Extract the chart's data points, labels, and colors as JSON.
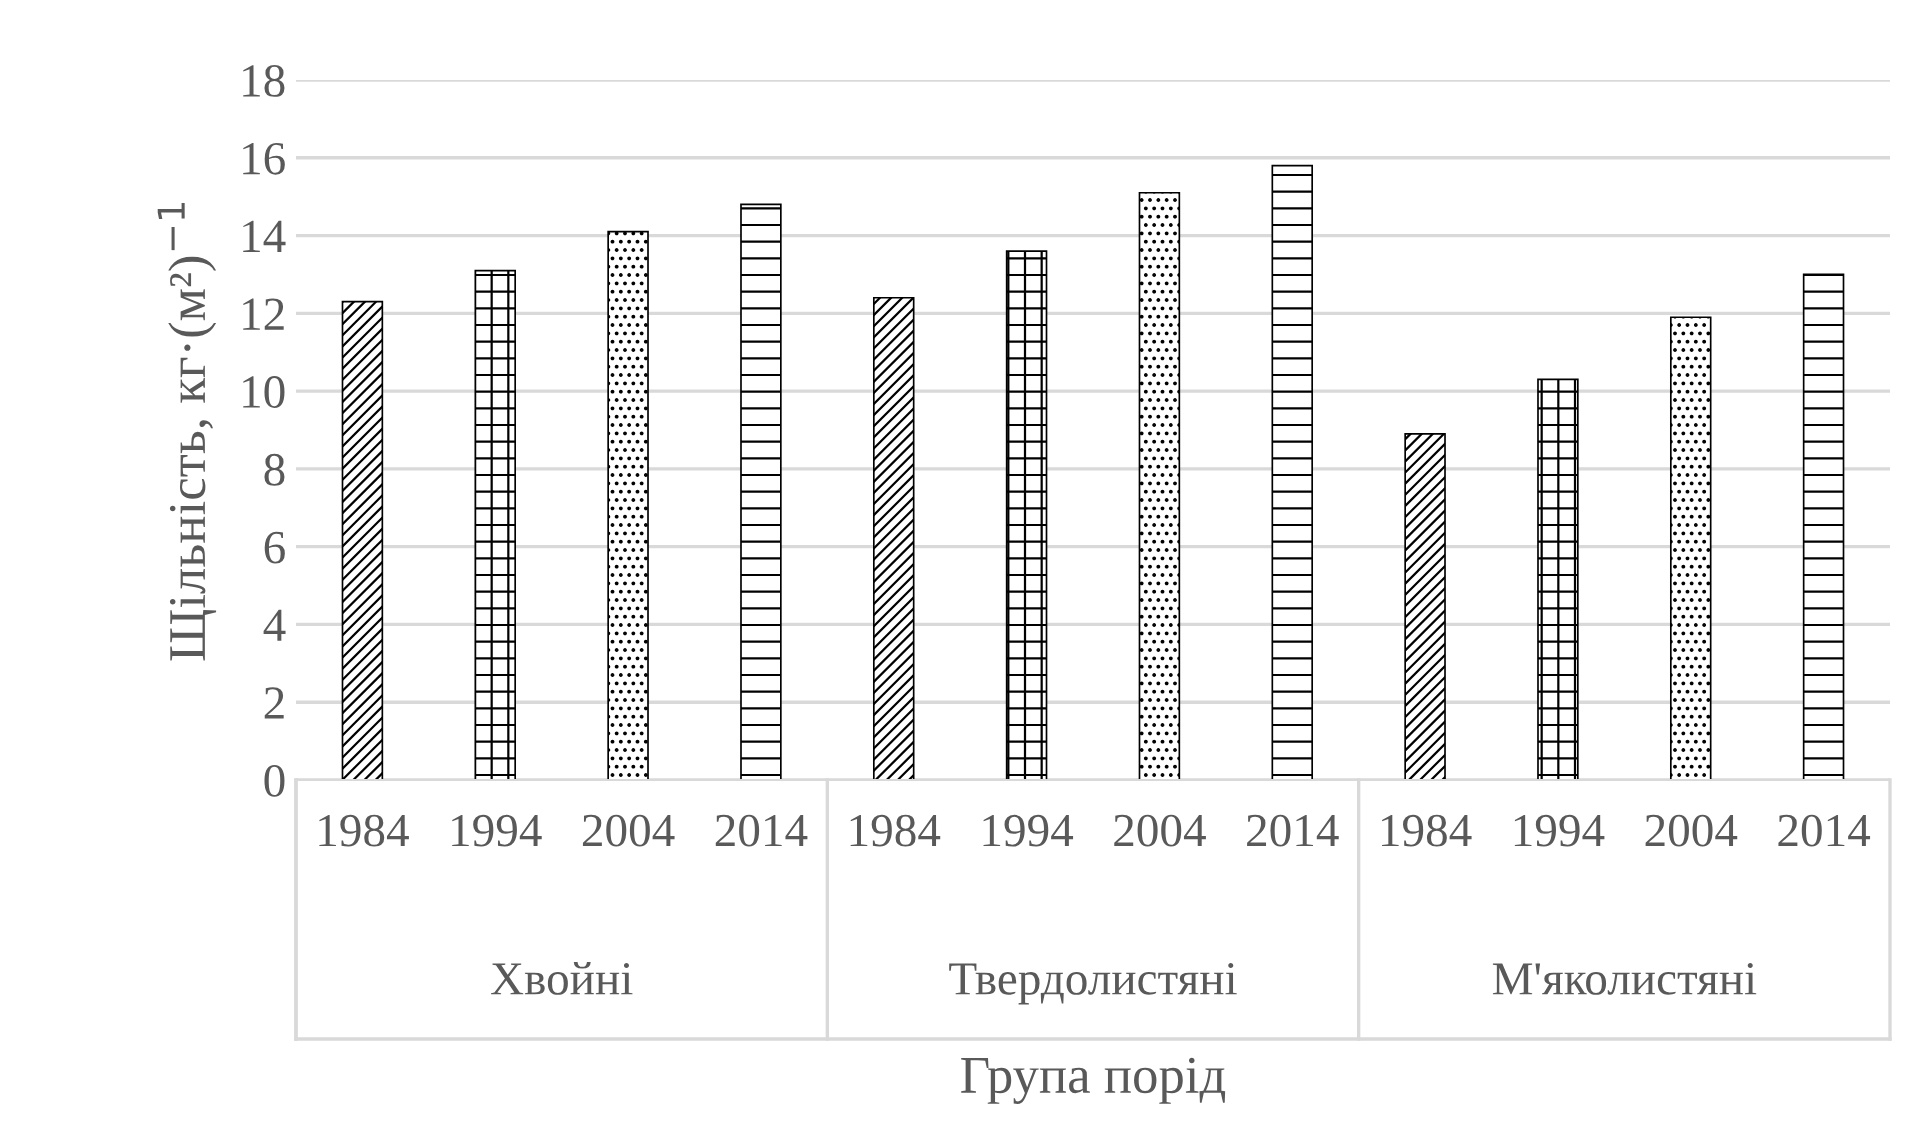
{
  "chart_data": {
    "type": "bar",
    "ylabel": "Щільність, кг·(м²)$^{−1}$",
    "xlabel": "Група порід",
    "categories": [
      "1984",
      "1994",
      "2004",
      "2014",
      "1984",
      "1994",
      "2004",
      "2014",
      "1984",
      "1994",
      "2004",
      "2014"
    ],
    "values": [
      12.3,
      13.1,
      14.1,
      14.8,
      12.4,
      13.6,
      15.1,
      15.8,
      8.9,
      10.3,
      11.9,
      13.0
    ],
    "color": "#000000",
    "annotations": [
      "Хвойні",
      "Твердолистяні",
      "М'яколистяні"
    ],
    "ylim": [
      0,
      18
    ],
    "yticks": [
      0,
      2,
      4,
      6,
      8,
      10,
      12,
      14,
      16,
      18
    ],
    "grid": "y"
  }
}
